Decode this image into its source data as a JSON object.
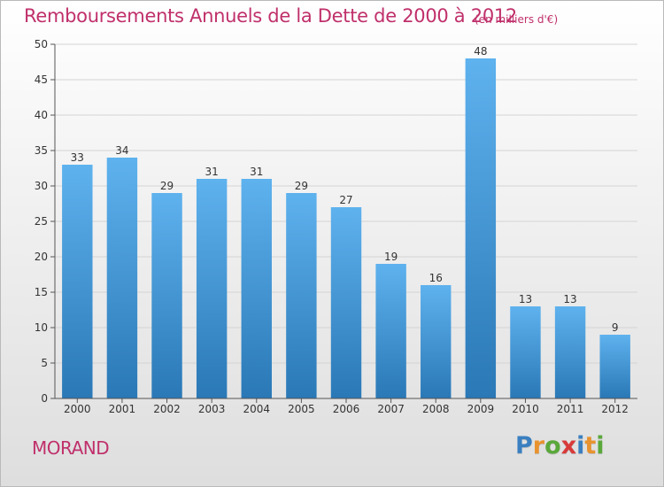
{
  "header": {
    "title": "Remboursements Annuels de la Dette de 2000 à 2012",
    "unit": "(en milliers d'€)"
  },
  "footer": {
    "commune": "MORAND",
    "logo_letters": [
      {
        "char": "P",
        "color": "#3a7fc0"
      },
      {
        "char": "r",
        "color": "#e8932f"
      },
      {
        "char": "o",
        "color": "#5aa83a"
      },
      {
        "char": "x",
        "color": "#d83a3a"
      },
      {
        "char": "i",
        "color": "#3a7fc0"
      },
      {
        "char": "t",
        "color": "#e8932f"
      },
      {
        "char": "i",
        "color": "#5aa83a"
      }
    ]
  },
  "colors": {
    "accent": "#c0306b",
    "bar_light": "#5eb2ee",
    "bar_dark": "#2a78b6",
    "grid": "#d4d4d4",
    "axis": "#555555"
  },
  "chart_data": {
    "type": "bar",
    "title": "Remboursements Annuels de la Dette de 2000 à 2012",
    "categories": [
      "2000",
      "2001",
      "2002",
      "2003",
      "2004",
      "2005",
      "2006",
      "2007",
      "2008",
      "2009",
      "2010",
      "2011",
      "2012"
    ],
    "values": [
      33,
      34,
      29,
      31,
      31,
      29,
      27,
      19,
      16,
      48,
      13,
      13,
      9
    ],
    "ylim": [
      0,
      50
    ],
    "yticks": [
      0,
      5,
      10,
      15,
      20,
      25,
      30,
      35,
      40,
      45,
      50
    ],
    "grid": true,
    "data_labels": true
  }
}
